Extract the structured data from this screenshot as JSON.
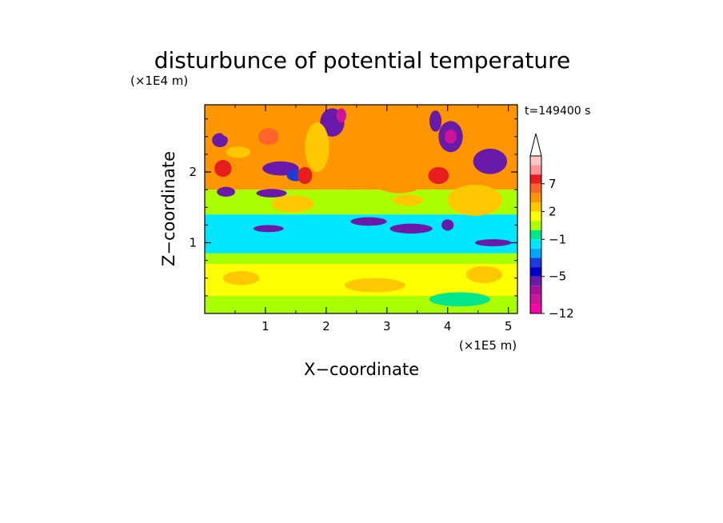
{
  "chart_data": {
    "type": "heatmap",
    "title": "disturbunce of potential temperature",
    "time_label": "t=149400 s",
    "xlabel": "X−coordinate",
    "ylabel": "Z−coordinate",
    "x_unit": "(×1E5 m)",
    "y_unit": "(×1E4 m)",
    "xlim": [
      0,
      5.15
    ],
    "ylim": [
      0,
      2.95
    ],
    "x_ticks": [
      1,
      2,
      3,
      4,
      5
    ],
    "x_tick_labels": [
      "1",
      "2",
      "3",
      "4",
      "5"
    ],
    "y_ticks": [
      1,
      2
    ],
    "y_tick_labels": [
      "1",
      "2"
    ],
    "colorbar": {
      "levels": [
        -12,
        -10,
        -8,
        -6,
        -5,
        -4,
        -3,
        -2,
        -1,
        0,
        1,
        2,
        3,
        5,
        7,
        9,
        11
      ],
      "tick_labels": [
        {
          "level": 7,
          "label": "7"
        },
        {
          "level": 2,
          "label": "2"
        },
        {
          "level": -1,
          "label": "−1"
        },
        {
          "level": -5,
          "label": "−5"
        },
        {
          "level": -12,
          "label": "−12"
        }
      ],
      "colors": [
        "#ff00aa",
        "#cc1499",
        "#aa1199",
        "#6a1aa8",
        "#0000c8",
        "#1a3cdd",
        "#00a5ff",
        "#00e6ff",
        "#00e68c",
        "#aaff00",
        "#ffff00",
        "#ffc800",
        "#ff9600",
        "#ff6428",
        "#e61e1e",
        "#ff9696",
        "#ffc8c8"
      ],
      "extend": "max"
    },
    "field_summary": [
      {
        "z_range": [
          0,
          0.25
        ],
        "typical": 0.5
      },
      {
        "z_range": [
          0.25,
          0.7
        ],
        "typical": 1.5
      },
      {
        "z_range": [
          0.7,
          0.85
        ],
        "typical": 0
      },
      {
        "z_range": [
          0.85,
          1.4
        ],
        "typical": -1.5
      },
      {
        "z_range": [
          1.4,
          1.75
        ],
        "typical": 0.5
      },
      {
        "z_range": [
          1.75,
          2.95
        ],
        "typical": 3
      }
    ],
    "blobs": [
      {
        "x": 0.25,
        "z": 2.45,
        "rx": 0.13,
        "rz": 0.1,
        "value": -5.5
      },
      {
        "x": 0.3,
        "z": 2.05,
        "rx": 0.14,
        "rz": 0.12,
        "value": 7.5
      },
      {
        "x": 0.45,
        "z": 2.65,
        "rx": 0.22,
        "rz": 0.17,
        "value": 3.5
      },
      {
        "x": 0.55,
        "z": 2.28,
        "rx": 0.2,
        "rz": 0.08,
        "value": 2.5
      },
      {
        "x": 0.35,
        "z": 1.72,
        "rx": 0.15,
        "rz": 0.07,
        "value": -5.5
      },
      {
        "x": 0.95,
        "z": 2.55,
        "rx": 0.45,
        "rz": 0.25,
        "value": 3.5
      },
      {
        "x": 1.05,
        "z": 2.5,
        "rx": 0.17,
        "rz": 0.12,
        "value": 6
      },
      {
        "x": 1.25,
        "z": 2.05,
        "rx": 0.3,
        "rz": 0.1,
        "value": -5.5
      },
      {
        "x": 1.5,
        "z": 1.95,
        "rx": 0.15,
        "rz": 0.08,
        "value": -3.5
      },
      {
        "x": 1.65,
        "z": 1.95,
        "rx": 0.12,
        "rz": 0.12,
        "value": 7.5
      },
      {
        "x": 1.1,
        "z": 1.7,
        "rx": 0.25,
        "rz": 0.06,
        "value": -5.5
      },
      {
        "x": 1.45,
        "z": 1.55,
        "rx": 0.35,
        "rz": 0.12,
        "value": 2.5
      },
      {
        "x": 2.1,
        "z": 2.7,
        "rx": 0.2,
        "rz": 0.2,
        "value": -5.5
      },
      {
        "x": 2.25,
        "z": 2.8,
        "rx": 0.08,
        "rz": 0.1,
        "value": -9
      },
      {
        "x": 2.35,
        "z": 2.05,
        "rx": 0.45,
        "rz": 0.3,
        "value": 3.5
      },
      {
        "x": 3.2,
        "z": 2.0,
        "rx": 0.55,
        "rz": 0.3,
        "value": 3.5
      },
      {
        "x": 1.85,
        "z": 2.35,
        "rx": 0.2,
        "rz": 0.35,
        "value": 2.5
      },
      {
        "x": 3.7,
        "z": 2.55,
        "rx": 0.25,
        "rz": 0.25,
        "value": 4
      },
      {
        "x": 3.35,
        "z": 1.6,
        "rx": 0.25,
        "rz": 0.08,
        "value": 2.5
      },
      {
        "x": 3.8,
        "z": 2.72,
        "rx": 0.1,
        "rz": 0.15,
        "value": -5.5
      },
      {
        "x": 4.05,
        "z": 2.5,
        "rx": 0.2,
        "rz": 0.22,
        "value": -5.5
      },
      {
        "x": 4.05,
        "z": 2.5,
        "rx": 0.1,
        "rz": 0.1,
        "value": -9
      },
      {
        "x": 3.85,
        "z": 1.95,
        "rx": 0.17,
        "rz": 0.12,
        "value": 7.5
      },
      {
        "x": 4.7,
        "z": 2.15,
        "rx": 0.28,
        "rz": 0.18,
        "value": -5.5
      },
      {
        "x": 4.45,
        "z": 1.6,
        "rx": 0.45,
        "rz": 0.22,
        "value": 2.5
      },
      {
        "x": 4.85,
        "z": 2.6,
        "rx": 0.3,
        "rz": 0.25,
        "value": 4
      },
      {
        "x": 4.0,
        "z": 1.25,
        "rx": 0.1,
        "rz": 0.08,
        "value": -5.5
      },
      {
        "x": 1.05,
        "z": 1.2,
        "rx": 0.25,
        "rz": 0.05,
        "value": -5.5
      },
      {
        "x": 3.4,
        "z": 1.2,
        "rx": 0.35,
        "rz": 0.07,
        "value": -5.5
      },
      {
        "x": 2.7,
        "z": 1.3,
        "rx": 0.3,
        "rz": 0.06,
        "value": -5.5
      },
      {
        "x": 4.75,
        "z": 1.0,
        "rx": 0.3,
        "rz": 0.05,
        "value": -5.5
      },
      {
        "x": 0.6,
        "z": 0.5,
        "rx": 0.3,
        "rz": 0.1,
        "value": 2.5
      },
      {
        "x": 2.8,
        "z": 0.4,
        "rx": 0.5,
        "rz": 0.1,
        "value": 2.5
      },
      {
        "x": 2.3,
        "z": 0.15,
        "rx": 0.6,
        "rz": 0.1,
        "value": 0.5
      },
      {
        "x": 4.2,
        "z": 0.2,
        "rx": 0.5,
        "rz": 0.1,
        "value": -0.5
      },
      {
        "x": 4.6,
        "z": 0.55,
        "rx": 0.3,
        "rz": 0.12,
        "value": 2.5
      }
    ]
  }
}
